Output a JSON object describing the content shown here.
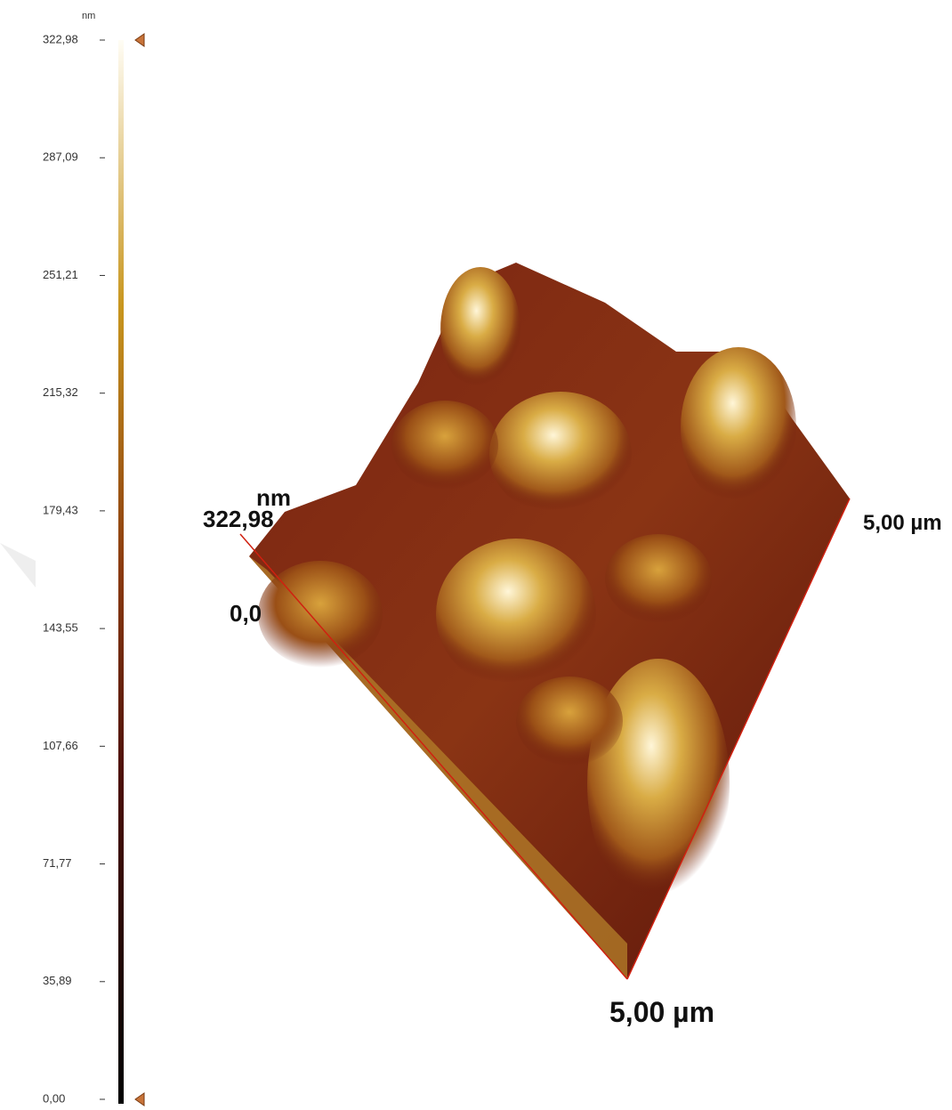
{
  "colorbar": {
    "unit": "nm",
    "ticks": [
      "322,98",
      "287,09",
      "251,21",
      "215,32",
      "179,43",
      "143,55",
      "107,66",
      "71,77",
      "35,89",
      "0,00"
    ]
  },
  "view": {
    "z_max": "322,98",
    "z_unit": "nm",
    "z_min": "0,0",
    "x_extent": "5,00 µm",
    "y_extent": "5,00 µm"
  }
}
